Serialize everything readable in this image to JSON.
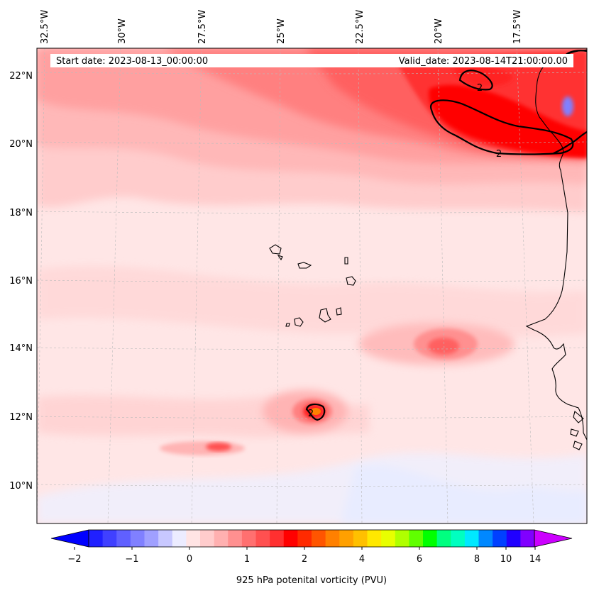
{
  "header": {
    "start_date": "Start date: 2023-08-13_00:00:00",
    "valid_date": "Valid_date: 2023-08-14T21:00:00.00"
  },
  "axes": {
    "lon_labels": [
      "32.5°W",
      "30°W",
      "27.5°W",
      "25°W",
      "22.5°W",
      "20°W",
      "17.5°W"
    ],
    "lat_labels": [
      "22°N",
      "20°N",
      "18°N",
      "16°N",
      "14°N",
      "12°N",
      "10°N"
    ]
  },
  "contour_labels": [
    "2",
    "2",
    "2"
  ],
  "colorbar": {
    "tick_labels": [
      "−2",
      "−1",
      "0",
      "1",
      "2",
      "4",
      "6",
      "8",
      "10",
      "14"
    ],
    "label": "925 hPa potenital vorticity (PVU)",
    "colors": [
      "#0000ff",
      "#2020ff",
      "#4040ff",
      "#6060ff",
      "#8080ff",
      "#a0a0ff",
      "#c8c8ff",
      "#ececff",
      "#ffe4e4",
      "#ffcccc",
      "#ffb0b0",
      "#ff9090",
      "#ff7070",
      "#ff5050",
      "#ff3030",
      "#ff0000",
      "#ff2a00",
      "#ff5500",
      "#ff8000",
      "#ffa000",
      "#ffc000",
      "#ffe800",
      "#e8ff00",
      "#b0ff00",
      "#60ff00",
      "#00ff00",
      "#00ff80",
      "#00ffc0",
      "#00e8ff",
      "#0088ff",
      "#0040ff",
      "#2000ff",
      "#8000ff",
      "#cc00ff"
    ]
  }
}
